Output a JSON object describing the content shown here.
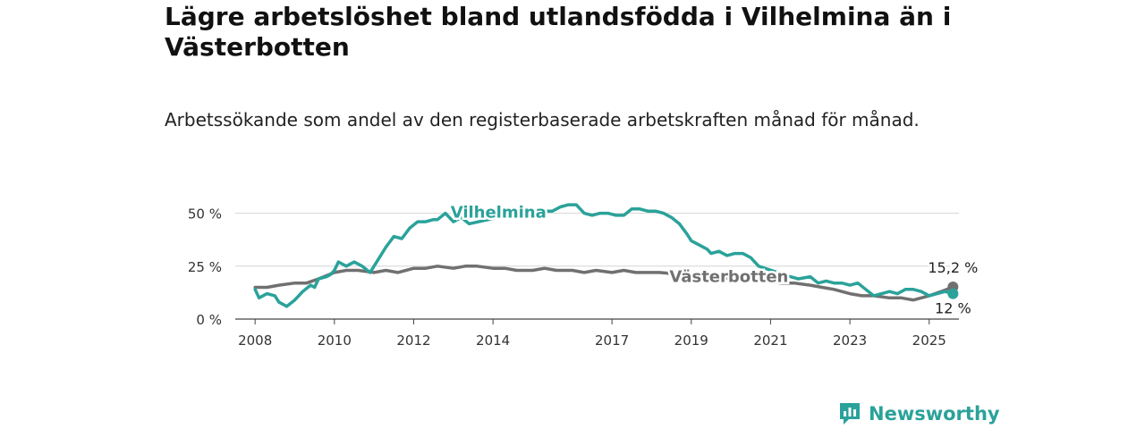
{
  "header": {
    "title": "Lägre arbetslöshet bland utlandsfödda i Vilhelmina än i Västerbotten",
    "subtitle": "Arbetssökande som andel av den registerbaserade arbetskraften månad för månad."
  },
  "brand": {
    "name": "Newsworthy",
    "icon": "newsworthy-logo-icon",
    "color": "#2aa29a"
  },
  "chart_data": {
    "type": "line",
    "title": "Lägre arbetslöshet bland utlandsfödda i Vilhelmina än i Västerbotten",
    "subtitle": "Arbetssökande som andel av den registerbaserade arbetskraften månad för månad.",
    "xlabel": "",
    "ylabel": "",
    "xlim": [
      2007.5,
      2025.75
    ],
    "ylim": [
      0,
      57
    ],
    "x_ticks": [
      2008,
      2010,
      2012,
      2014,
      2017,
      2019,
      2021,
      2023,
      2025
    ],
    "x_tick_labels": [
      "2008",
      "2010",
      "2012",
      "2014",
      "2017",
      "2019",
      "2021",
      "2023",
      "2025"
    ],
    "y_ticks": [
      0,
      25,
      50
    ],
    "y_tick_labels": [
      "0 %",
      "25 %",
      "50 %"
    ],
    "grid": true,
    "legend": "inline labels",
    "series": [
      {
        "name": "Vilhelmina",
        "color": "#2aa29a",
        "end_label": "12 %",
        "points": [
          [
            2008.0,
            14
          ],
          [
            2008.1,
            10
          ],
          [
            2008.3,
            12
          ],
          [
            2008.5,
            11
          ],
          [
            2008.6,
            8
          ],
          [
            2008.8,
            6
          ],
          [
            2009.0,
            9
          ],
          [
            2009.2,
            13
          ],
          [
            2009.4,
            16
          ],
          [
            2009.5,
            15
          ],
          [
            2009.6,
            19
          ],
          [
            2009.8,
            20
          ],
          [
            2009.9,
            21
          ],
          [
            2010.0,
            23
          ],
          [
            2010.1,
            27
          ],
          [
            2010.3,
            25
          ],
          [
            2010.5,
            27
          ],
          [
            2010.7,
            25
          ],
          [
            2010.9,
            22
          ],
          [
            2011.1,
            28
          ],
          [
            2011.3,
            34
          ],
          [
            2011.5,
            39
          ],
          [
            2011.7,
            38
          ],
          [
            2011.9,
            43
          ],
          [
            2012.1,
            46
          ],
          [
            2012.3,
            46
          ],
          [
            2012.5,
            47
          ],
          [
            2012.6,
            47
          ],
          [
            2012.8,
            50
          ],
          [
            2013.0,
            46
          ],
          [
            2013.2,
            48
          ],
          [
            2013.4,
            45
          ],
          [
            2014.6,
            50
          ],
          [
            2014.9,
            50
          ],
          [
            2015.1,
            51
          ],
          [
            2015.3,
            51
          ],
          [
            2015.5,
            51
          ],
          [
            2015.7,
            53
          ],
          [
            2015.9,
            54
          ],
          [
            2016.1,
            54
          ],
          [
            2016.3,
            50
          ],
          [
            2016.5,
            49
          ],
          [
            2016.7,
            50
          ],
          [
            2016.9,
            50
          ],
          [
            2017.1,
            49
          ],
          [
            2017.3,
            49
          ],
          [
            2017.5,
            52
          ],
          [
            2017.7,
            52
          ],
          [
            2017.9,
            51
          ],
          [
            2018.1,
            51
          ],
          [
            2018.3,
            50
          ],
          [
            2018.5,
            48
          ],
          [
            2018.7,
            45
          ],
          [
            2018.9,
            40
          ],
          [
            2019.0,
            37
          ],
          [
            2019.2,
            35
          ],
          [
            2019.4,
            33
          ],
          [
            2019.5,
            31
          ],
          [
            2019.7,
            32
          ],
          [
            2019.9,
            30
          ],
          [
            2020.1,
            31
          ],
          [
            2020.3,
            31
          ],
          [
            2020.5,
            29
          ],
          [
            2020.7,
            25
          ],
          [
            2021.5,
            20
          ],
          [
            2021.7,
            19
          ],
          [
            2022.0,
            20
          ],
          [
            2022.2,
            17
          ],
          [
            2022.4,
            18
          ],
          [
            2022.6,
            17
          ],
          [
            2022.8,
            17
          ],
          [
            2023.0,
            16
          ],
          [
            2023.2,
            17
          ],
          [
            2023.4,
            14
          ],
          [
            2023.6,
            11
          ],
          [
            2023.8,
            12
          ],
          [
            2024.0,
            13
          ],
          [
            2024.2,
            12
          ],
          [
            2024.4,
            14
          ],
          [
            2024.6,
            14
          ],
          [
            2024.8,
            13
          ],
          [
            2025.0,
            11
          ],
          [
            2025.2,
            12
          ],
          [
            2025.4,
            13
          ],
          [
            2025.6,
            12
          ]
        ]
      },
      {
        "name": "Västerbotten",
        "color": "#707070",
        "end_label": "15,2 %",
        "points": [
          [
            2008.0,
            15
          ],
          [
            2008.3,
            15
          ],
          [
            2008.6,
            16
          ],
          [
            2009.0,
            17
          ],
          [
            2009.3,
            17
          ],
          [
            2009.6,
            19
          ],
          [
            2010.0,
            22
          ],
          [
            2010.3,
            23
          ],
          [
            2010.6,
            23
          ],
          [
            2011.0,
            22
          ],
          [
            2011.3,
            23
          ],
          [
            2011.6,
            22
          ],
          [
            2012.0,
            24
          ],
          [
            2012.3,
            24
          ],
          [
            2012.6,
            25
          ],
          [
            2013.0,
            24
          ],
          [
            2013.3,
            25
          ],
          [
            2013.6,
            25
          ],
          [
            2014.0,
            24
          ],
          [
            2014.3,
            24
          ],
          [
            2014.6,
            23
          ],
          [
            2015.0,
            23
          ],
          [
            2015.3,
            24
          ],
          [
            2015.6,
            23
          ],
          [
            2016.0,
            23
          ],
          [
            2016.3,
            22
          ],
          [
            2016.6,
            23
          ],
          [
            2017.0,
            22
          ],
          [
            2017.3,
            23
          ],
          [
            2017.6,
            22
          ],
          [
            2017.9,
            22
          ],
          [
            2018.2,
            22
          ],
          [
            2021.3,
            17
          ],
          [
            2021.6,
            17
          ],
          [
            2022.0,
            16
          ],
          [
            2022.3,
            15
          ],
          [
            2022.6,
            14
          ],
          [
            2023.0,
            12
          ],
          [
            2023.3,
            11
          ],
          [
            2023.6,
            11
          ],
          [
            2024.0,
            10
          ],
          [
            2024.3,
            10
          ],
          [
            2024.6,
            9
          ],
          [
            2025.0,
            11
          ],
          [
            2025.3,
            13
          ],
          [
            2025.6,
            15.2
          ]
        ]
      }
    ]
  }
}
